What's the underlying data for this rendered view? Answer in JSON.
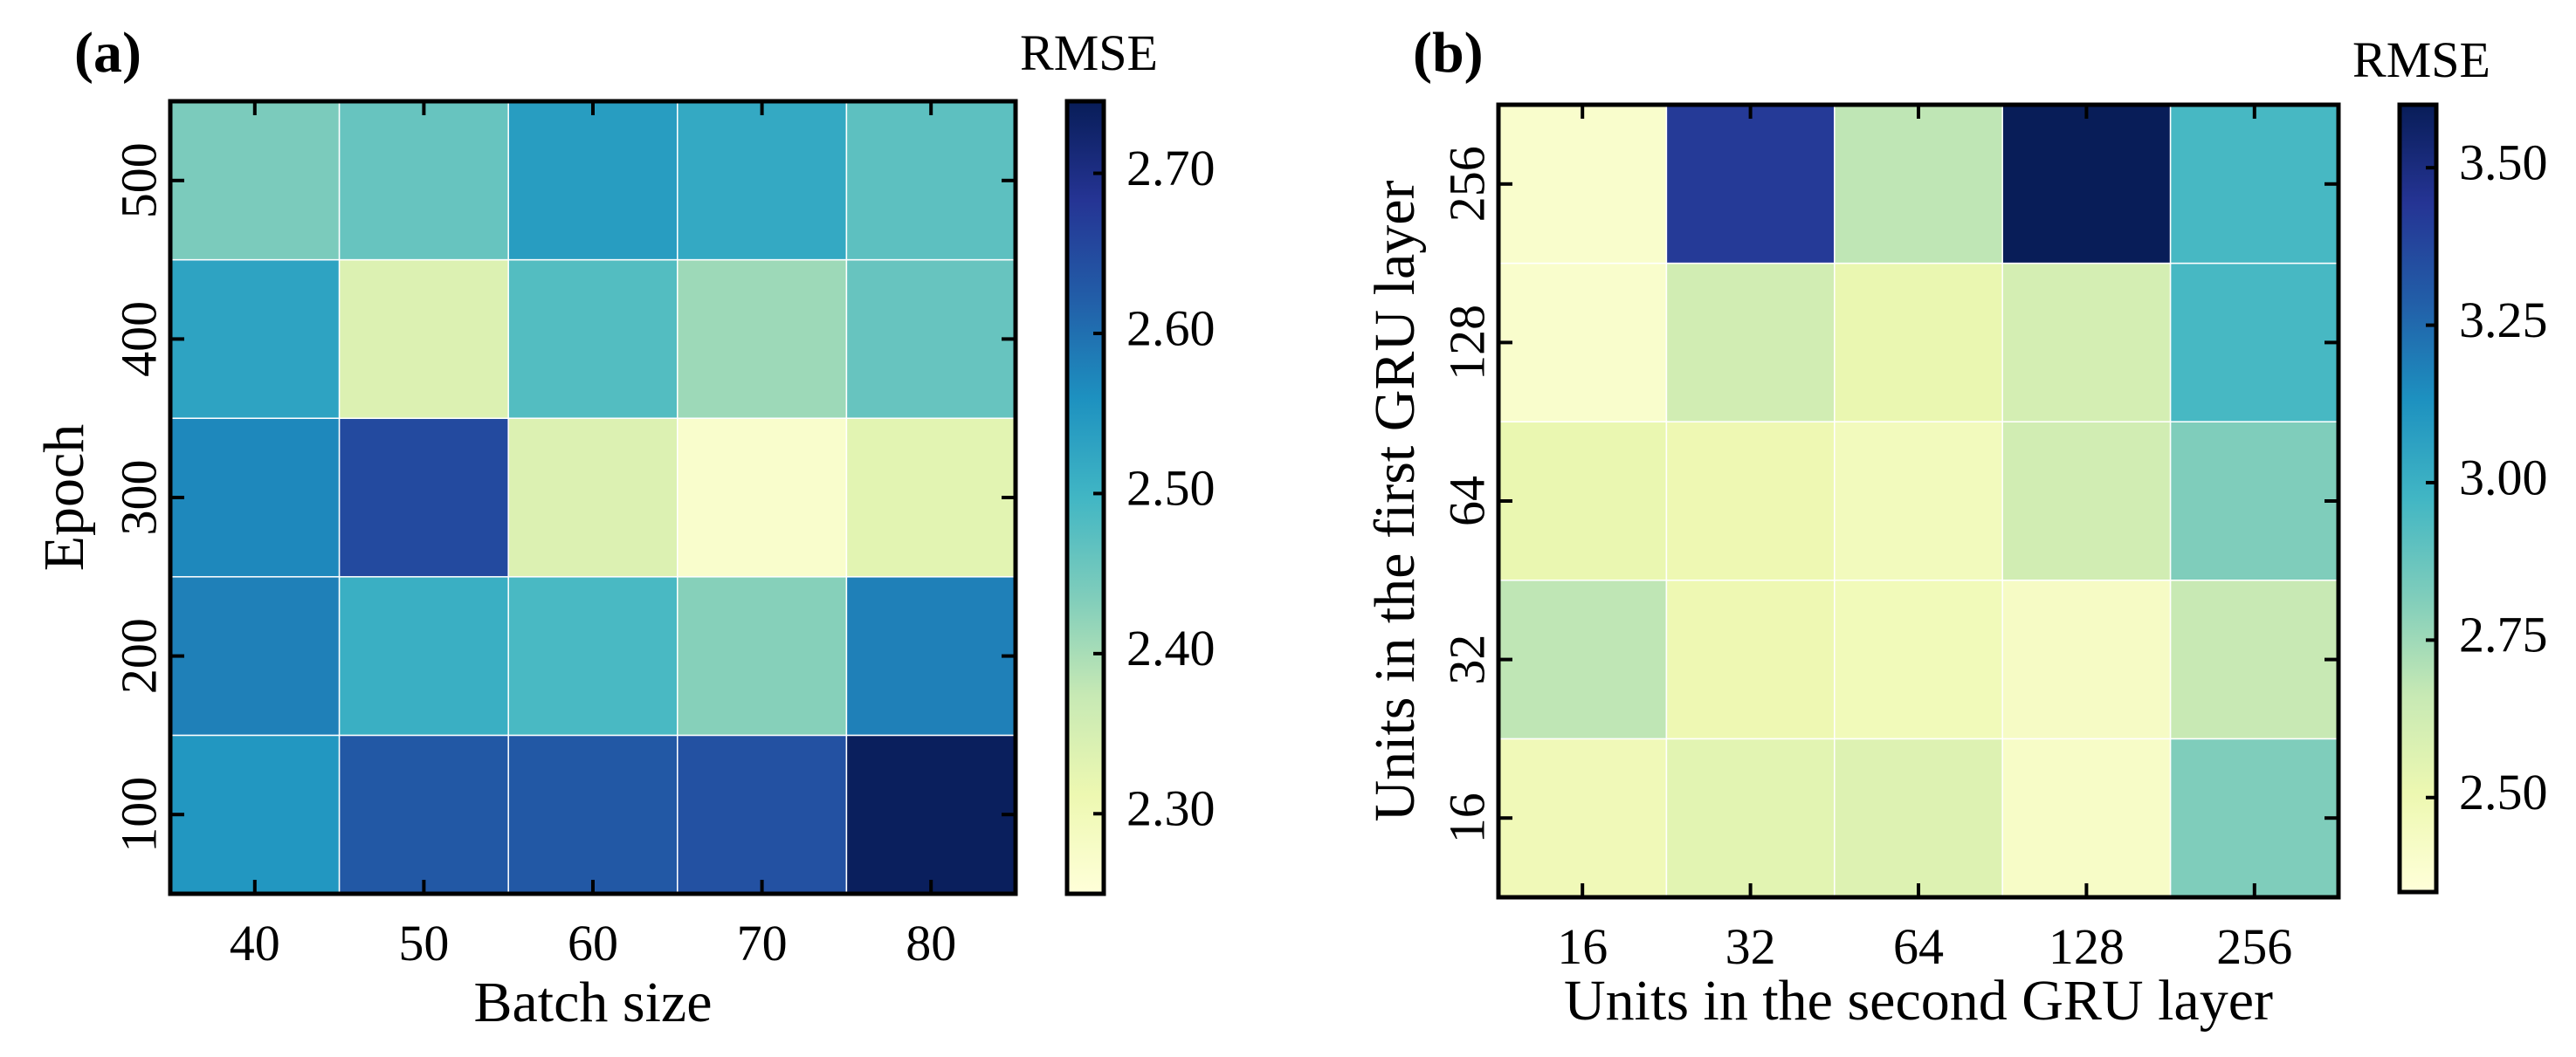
{
  "colormap": [
    "#ffffd9",
    "#edf8b1",
    "#c7e9b4",
    "#7fcdbb",
    "#41b6c4",
    "#1d91c0",
    "#225ea8",
    "#253494",
    "#081d58"
  ],
  "chart_data": [
    {
      "type": "heatmap",
      "panel_label": "(a)",
      "xlabel": "Batch size",
      "ylabel": "Epoch",
      "x_categories": [
        "40",
        "50",
        "60",
        "70",
        "80"
      ],
      "y_categories": [
        "100",
        "200",
        "300",
        "400",
        "500"
      ],
      "values": [
        [
          2.55,
          2.63,
          2.63,
          2.64,
          2.74
        ],
        [
          2.58,
          2.51,
          2.49,
          2.43,
          2.58
        ],
        [
          2.57,
          2.65,
          2.34,
          2.27,
          2.33
        ],
        [
          2.53,
          2.34,
          2.48,
          2.41,
          2.46
        ],
        [
          2.44,
          2.46,
          2.54,
          2.52,
          2.47
        ]
      ],
      "colorbar": {
        "label": "RMSE",
        "vmin": 2.25,
        "vmax": 2.745,
        "ticks": [
          2.3,
          2.4,
          2.5,
          2.6,
          2.7
        ],
        "tick_labels": [
          "2.30",
          "2.40",
          "2.50",
          "2.60",
          "2.70"
        ]
      }
    },
    {
      "type": "heatmap",
      "panel_label": "(b)",
      "xlabel": "Units in the second GRU layer",
      "ylabel": "Units in the first GRU layer",
      "x_categories": [
        "16",
        "32",
        "64",
        "128",
        "256"
      ],
      "y_categories": [
        "16",
        "32",
        "64",
        "128",
        "256"
      ],
      "values": [
        [
          2.48,
          2.55,
          2.57,
          2.42,
          2.82
        ],
        [
          2.68,
          2.5,
          2.47,
          2.43,
          2.66
        ],
        [
          2.52,
          2.5,
          2.46,
          2.62,
          2.82
        ],
        [
          2.4,
          2.62,
          2.52,
          2.61,
          2.96
        ],
        [
          2.4,
          3.42,
          2.68,
          3.6,
          2.96
        ]
      ],
      "colorbar": {
        "label": "RMSE",
        "vmin": 2.35,
        "vmax": 3.6,
        "ticks": [
          2.5,
          2.75,
          3.0,
          3.25,
          3.5
        ],
        "tick_labels": [
          "2.50",
          "2.75",
          "3.00",
          "3.25",
          "3.50"
        ]
      }
    }
  ]
}
